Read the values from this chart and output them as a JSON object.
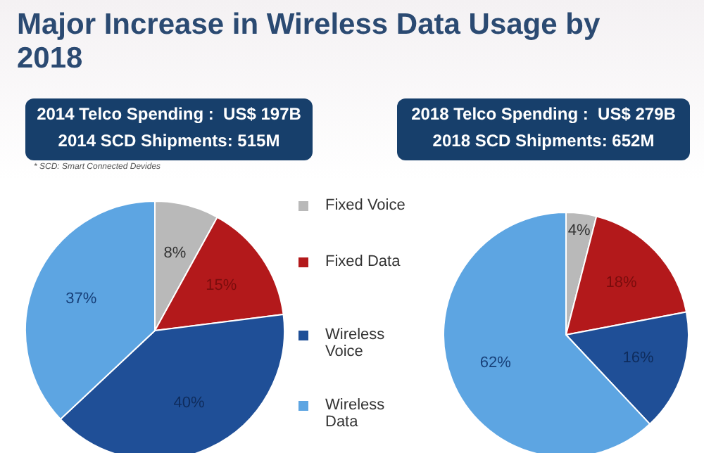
{
  "chart_data": [
    {
      "type": "pie",
      "title": "Major Increase in Wireless Data Usage by 2018",
      "annotations": [
        "2014 Telco Spending :  US$ 197B",
        "2014 SCD Shipments: 515M",
        "* SCD: Smart Connected Devides"
      ],
      "categories": [
        "Fixed Voice",
        "Fixed Data",
        "Wireless Voice",
        "Wireless Data"
      ],
      "values": [
        8,
        15,
        40,
        37
      ],
      "value_labels": [
        "8%",
        "15%",
        "40%",
        "37%"
      ],
      "colors": [
        "#b9b9b9",
        "#b3191b",
        "#1f4f97",
        "#5da5e2"
      ],
      "legend": "right"
    },
    {
      "type": "pie",
      "annotations": [
        "2018 Telco Spending :  US$ 279B",
        "2018 SCD Shipments: 652M"
      ],
      "categories": [
        null,
        null,
        null,
        null
      ],
      "values": [
        4,
        18,
        16,
        62
      ],
      "value_labels": [
        "4%",
        "18%",
        "16%",
        "62%"
      ],
      "colors": [
        "#b9b9b9",
        "#b3191b",
        "#1f4f97",
        "#5da5e2"
      ]
    }
  ]
}
